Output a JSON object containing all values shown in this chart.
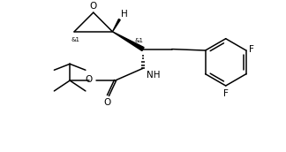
{
  "bg_color": "#ffffff",
  "line_color": "#000000",
  "line_width": 1.1,
  "font_size": 6.5,
  "figsize": [
    3.24,
    1.72
  ],
  "dpi": 100,
  "xlim": [
    0,
    324
  ],
  "ylim": [
    0,
    172
  ]
}
